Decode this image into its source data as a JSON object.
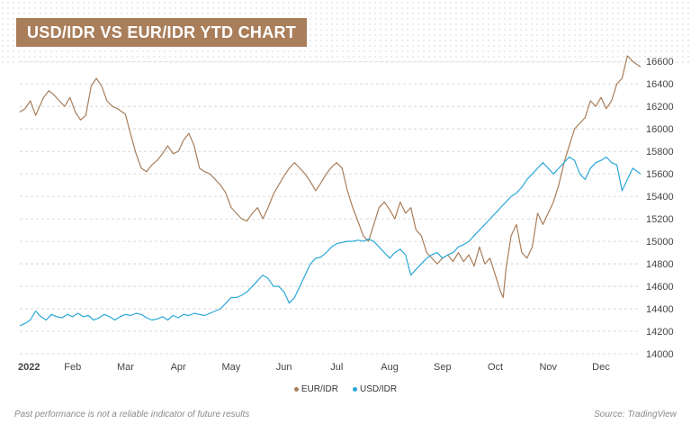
{
  "colors": {
    "title_bg": "#a97e5a",
    "eur": "#a97e5a",
    "usd": "#2aa7d8",
    "grid": "#cfcfcf",
    "tick": "#444444",
    "footer": "#8a8a8a"
  },
  "chart_data": {
    "type": "line",
    "title": "USD/IDR VS EUR/IDR YTD CHART",
    "x_ticks": [
      "2022",
      "Feb",
      "Mar",
      "Apr",
      "May",
      "Jun",
      "Jul",
      "Aug",
      "Sep",
      "Oct",
      "Nov",
      "Dec"
    ],
    "y_ticks": [
      16600,
      16400,
      16200,
      16000,
      15800,
      15600,
      15400,
      15200,
      15000,
      14800,
      14600,
      14400,
      14200,
      14000
    ],
    "ylim": [
      14000,
      16650
    ],
    "x_unit": "month index (0 = 1 Jan 2022)",
    "xlim": [
      0,
      11.75
    ],
    "y_axis_position": "right",
    "grid": "horizontal dashed",
    "legend": "bottom-center",
    "series": [
      {
        "name": "EUR/IDR",
        "color_key": "eur",
        "points": [
          [
            0.0,
            16150
          ],
          [
            0.1,
            16180
          ],
          [
            0.2,
            16250
          ],
          [
            0.3,
            16120
          ],
          [
            0.45,
            16280
          ],
          [
            0.55,
            16340
          ],
          [
            0.65,
            16300
          ],
          [
            0.75,
            16250
          ],
          [
            0.85,
            16200
          ],
          [
            0.95,
            16280
          ],
          [
            1.05,
            16150
          ],
          [
            1.15,
            16080
          ],
          [
            1.25,
            16120
          ],
          [
            1.35,
            16380
          ],
          [
            1.45,
            16450
          ],
          [
            1.55,
            16380
          ],
          [
            1.65,
            16250
          ],
          [
            1.75,
            16200
          ],
          [
            1.85,
            16180
          ],
          [
            2.0,
            16130
          ],
          [
            2.1,
            15950
          ],
          [
            2.2,
            15780
          ],
          [
            2.3,
            15650
          ],
          [
            2.4,
            15620
          ],
          [
            2.5,
            15680
          ],
          [
            2.6,
            15720
          ],
          [
            2.7,
            15780
          ],
          [
            2.8,
            15850
          ],
          [
            2.9,
            15780
          ],
          [
            3.0,
            15800
          ],
          [
            3.1,
            15900
          ],
          [
            3.2,
            15960
          ],
          [
            3.3,
            15850
          ],
          [
            3.4,
            15650
          ],
          [
            3.5,
            15620
          ],
          [
            3.6,
            15600
          ],
          [
            3.7,
            15550
          ],
          [
            3.8,
            15500
          ],
          [
            3.9,
            15430
          ],
          [
            4.0,
            15300
          ],
          [
            4.1,
            15250
          ],
          [
            4.2,
            15200
          ],
          [
            4.3,
            15180
          ],
          [
            4.4,
            15250
          ],
          [
            4.5,
            15300
          ],
          [
            4.6,
            15200
          ],
          [
            4.7,
            15300
          ],
          [
            4.8,
            15420
          ],
          [
            4.9,
            15500
          ],
          [
            5.0,
            15580
          ],
          [
            5.1,
            15650
          ],
          [
            5.2,
            15700
          ],
          [
            5.3,
            15650
          ],
          [
            5.4,
            15600
          ],
          [
            5.5,
            15530
          ],
          [
            5.6,
            15450
          ],
          [
            5.7,
            15520
          ],
          [
            5.8,
            15600
          ],
          [
            5.9,
            15660
          ],
          [
            6.0,
            15700
          ],
          [
            6.1,
            15650
          ],
          [
            6.2,
            15450
          ],
          [
            6.3,
            15300
          ],
          [
            6.4,
            15180
          ],
          [
            6.5,
            15050
          ],
          [
            6.6,
            15000
          ],
          [
            6.7,
            15150
          ],
          [
            6.8,
            15300
          ],
          [
            6.9,
            15350
          ],
          [
            7.0,
            15280
          ],
          [
            7.1,
            15200
          ],
          [
            7.2,
            15350
          ],
          [
            7.3,
            15250
          ],
          [
            7.4,
            15300
          ],
          [
            7.5,
            15100
          ],
          [
            7.6,
            15050
          ],
          [
            7.7,
            14900
          ],
          [
            7.8,
            14850
          ],
          [
            7.9,
            14800
          ],
          [
            8.0,
            14850
          ],
          [
            8.1,
            14880
          ],
          [
            8.2,
            14820
          ],
          [
            8.3,
            14900
          ],
          [
            8.4,
            14820
          ],
          [
            8.5,
            14880
          ],
          [
            8.6,
            14780
          ],
          [
            8.7,
            14950
          ],
          [
            8.8,
            14800
          ],
          [
            8.9,
            14850
          ],
          [
            9.0,
            14700
          ],
          [
            9.1,
            14550
          ],
          [
            9.15,
            14500
          ],
          [
            9.2,
            14750
          ],
          [
            9.3,
            15050
          ],
          [
            9.4,
            15150
          ],
          [
            9.5,
            14900
          ],
          [
            9.6,
            14850
          ],
          [
            9.7,
            14950
          ],
          [
            9.8,
            15250
          ],
          [
            9.9,
            15150
          ],
          [
            10.0,
            15250
          ],
          [
            10.1,
            15350
          ],
          [
            10.2,
            15500
          ],
          [
            10.3,
            15700
          ],
          [
            10.4,
            15850
          ],
          [
            10.5,
            16000
          ],
          [
            10.6,
            16050
          ],
          [
            10.7,
            16100
          ],
          [
            10.8,
            16250
          ],
          [
            10.9,
            16200
          ],
          [
            11.0,
            16280
          ],
          [
            11.1,
            16180
          ],
          [
            11.2,
            16250
          ],
          [
            11.3,
            16400
          ],
          [
            11.4,
            16450
          ],
          [
            11.5,
            16650
          ],
          [
            11.6,
            16600
          ],
          [
            11.75,
            16550
          ]
        ]
      },
      {
        "name": "USD/IDR",
        "color_key": "usd",
        "points": [
          [
            0.0,
            14250
          ],
          [
            0.1,
            14270
          ],
          [
            0.2,
            14300
          ],
          [
            0.3,
            14380
          ],
          [
            0.4,
            14330
          ],
          [
            0.5,
            14300
          ],
          [
            0.6,
            14350
          ],
          [
            0.7,
            14330
          ],
          [
            0.8,
            14320
          ],
          [
            0.9,
            14350
          ],
          [
            1.0,
            14330
          ],
          [
            1.1,
            14360
          ],
          [
            1.2,
            14330
          ],
          [
            1.3,
            14340
          ],
          [
            1.4,
            14300
          ],
          [
            1.5,
            14320
          ],
          [
            1.6,
            14350
          ],
          [
            1.7,
            14330
          ],
          [
            1.8,
            14300
          ],
          [
            1.9,
            14330
          ],
          [
            2.0,
            14350
          ],
          [
            2.1,
            14340
          ],
          [
            2.2,
            14360
          ],
          [
            2.3,
            14350
          ],
          [
            2.4,
            14320
          ],
          [
            2.5,
            14300
          ],
          [
            2.6,
            14310
          ],
          [
            2.7,
            14330
          ],
          [
            2.8,
            14300
          ],
          [
            2.9,
            14340
          ],
          [
            3.0,
            14320
          ],
          [
            3.1,
            14350
          ],
          [
            3.2,
            14340
          ],
          [
            3.3,
            14360
          ],
          [
            3.4,
            14350
          ],
          [
            3.5,
            14340
          ],
          [
            3.6,
            14360
          ],
          [
            3.7,
            14380
          ],
          [
            3.8,
            14400
          ],
          [
            3.9,
            14450
          ],
          [
            4.0,
            14500
          ],
          [
            4.1,
            14500
          ],
          [
            4.2,
            14520
          ],
          [
            4.3,
            14550
          ],
          [
            4.4,
            14600
          ],
          [
            4.5,
            14650
          ],
          [
            4.6,
            14700
          ],
          [
            4.7,
            14670
          ],
          [
            4.8,
            14600
          ],
          [
            4.9,
            14600
          ],
          [
            5.0,
            14550
          ],
          [
            5.1,
            14450
          ],
          [
            5.2,
            14500
          ],
          [
            5.3,
            14600
          ],
          [
            5.4,
            14700
          ],
          [
            5.5,
            14800
          ],
          [
            5.6,
            14850
          ],
          [
            5.7,
            14860
          ],
          [
            5.8,
            14900
          ],
          [
            5.9,
            14950
          ],
          [
            6.0,
            14980
          ],
          [
            6.1,
            14990
          ],
          [
            6.2,
            15000
          ],
          [
            6.3,
            15000
          ],
          [
            6.4,
            15010
          ],
          [
            6.5,
            15000
          ],
          [
            6.6,
            15020
          ],
          [
            6.7,
            15000
          ],
          [
            6.8,
            14950
          ],
          [
            6.9,
            14900
          ],
          [
            7.0,
            14850
          ],
          [
            7.1,
            14900
          ],
          [
            7.2,
            14930
          ],
          [
            7.3,
            14880
          ],
          [
            7.4,
            14700
          ],
          [
            7.5,
            14750
          ],
          [
            7.6,
            14800
          ],
          [
            7.7,
            14850
          ],
          [
            7.8,
            14880
          ],
          [
            7.9,
            14900
          ],
          [
            8.0,
            14850
          ],
          [
            8.1,
            14880
          ],
          [
            8.2,
            14900
          ],
          [
            8.3,
            14950
          ],
          [
            8.4,
            14970
          ],
          [
            8.5,
            15000
          ],
          [
            8.6,
            15050
          ],
          [
            8.7,
            15100
          ],
          [
            8.8,
            15150
          ],
          [
            8.9,
            15200
          ],
          [
            9.0,
            15250
          ],
          [
            9.1,
            15300
          ],
          [
            9.2,
            15350
          ],
          [
            9.3,
            15400
          ],
          [
            9.4,
            15430
          ],
          [
            9.5,
            15480
          ],
          [
            9.6,
            15550
          ],
          [
            9.7,
            15600
          ],
          [
            9.8,
            15650
          ],
          [
            9.9,
            15700
          ],
          [
            10.0,
            15650
          ],
          [
            10.1,
            15600
          ],
          [
            10.2,
            15650
          ],
          [
            10.3,
            15700
          ],
          [
            10.4,
            15750
          ],
          [
            10.5,
            15720
          ],
          [
            10.6,
            15600
          ],
          [
            10.7,
            15550
          ],
          [
            10.8,
            15650
          ],
          [
            10.9,
            15700
          ],
          [
            11.0,
            15720
          ],
          [
            11.1,
            15750
          ],
          [
            11.2,
            15700
          ],
          [
            11.3,
            15680
          ],
          [
            11.4,
            15450
          ],
          [
            11.5,
            15550
          ],
          [
            11.6,
            15650
          ],
          [
            11.75,
            15600
          ]
        ]
      }
    ]
  },
  "footer": {
    "disclaimer": "Past performance is not a reliable indicator of future results",
    "source": "Source: TradingView"
  }
}
